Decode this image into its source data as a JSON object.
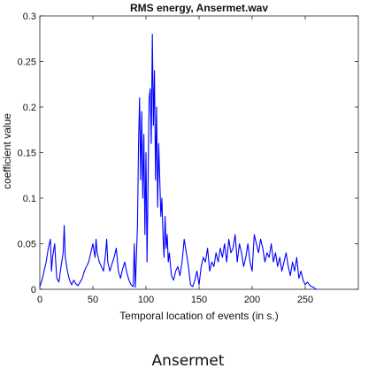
{
  "chart_data": {
    "type": "line",
    "title": "RMS energy, Ansermet.wav",
    "xlabel": "Temporal location of events (in s.)",
    "ylabel": "coefficient value",
    "xlim": [
      0,
      300
    ],
    "ylim": [
      0,
      0.3
    ],
    "xticks": [
      "0",
      "50",
      "100",
      "150",
      "200",
      "250"
    ],
    "yticks": [
      "0",
      "0.05",
      "0.1",
      "0.15",
      "0.2",
      "0.25",
      "0.3"
    ],
    "grid": false,
    "line_color": "#0000ff",
    "series": [
      {
        "x": [
          0,
          2,
          4,
          6,
          8,
          10,
          11,
          12,
          14,
          15,
          16,
          18,
          20,
          22,
          23,
          24,
          26,
          28,
          30,
          32,
          34,
          36,
          38,
          40,
          42,
          44,
          46,
          48,
          50,
          52,
          53,
          54,
          56,
          58,
          60,
          62,
          63,
          64,
          66,
          68,
          70,
          72,
          74,
          76,
          78,
          80,
          82,
          84,
          86,
          88,
          89,
          90,
          92,
          93,
          94,
          95,
          96,
          97,
          98,
          99,
          100,
          101,
          102,
          103,
          104,
          105,
          106,
          107,
          108,
          109,
          110,
          111,
          112,
          113,
          114,
          115,
          116,
          117,
          118,
          119,
          120,
          121,
          122,
          124,
          126,
          128,
          130,
          132,
          134,
          136,
          138,
          140,
          142,
          144,
          146,
          148,
          150,
          152,
          154,
          156,
          158,
          160,
          162,
          164,
          166,
          168,
          170,
          172,
          174,
          176,
          178,
          180,
          182,
          184,
          186,
          188,
          190,
          192,
          194,
          196,
          198,
          200,
          202,
          204,
          206,
          208,
          210,
          212,
          214,
          216,
          218,
          220,
          222,
          224,
          226,
          228,
          230,
          232,
          234,
          236,
          238,
          240,
          242,
          244,
          246,
          248,
          250,
          252,
          254,
          256,
          258,
          260,
          262
        ],
        "y": [
          0.003,
          0.01,
          0.02,
          0.03,
          0.045,
          0.055,
          0.02,
          0.035,
          0.05,
          0.03,
          0.012,
          0.008,
          0.025,
          0.04,
          0.07,
          0.035,
          0.02,
          0.01,
          0.005,
          0.01,
          0.006,
          0.004,
          0.008,
          0.012,
          0.02,
          0.025,
          0.03,
          0.04,
          0.05,
          0.035,
          0.055,
          0.04,
          0.03,
          0.025,
          0.02,
          0.04,
          0.055,
          0.03,
          0.02,
          0.028,
          0.035,
          0.045,
          0.02,
          0.012,
          0.022,
          0.03,
          0.018,
          0.01,
          0.005,
          0.003,
          0.05,
          0.002,
          0.07,
          0.16,
          0.21,
          0.12,
          0.195,
          0.1,
          0.17,
          0.06,
          0.15,
          0.03,
          0.12,
          0.21,
          0.22,
          0.16,
          0.28,
          0.18,
          0.24,
          0.12,
          0.2,
          0.09,
          0.16,
          0.12,
          0.08,
          0.1,
          0.06,
          0.035,
          0.08,
          0.045,
          0.06,
          0.03,
          0.04,
          0.015,
          0.01,
          0.02,
          0.025,
          0.015,
          0.03,
          0.055,
          0.04,
          0.025,
          0.005,
          0.003,
          0.01,
          0.02,
          0.005,
          0.025,
          0.035,
          0.03,
          0.045,
          0.02,
          0.03,
          0.025,
          0.04,
          0.03,
          0.045,
          0.035,
          0.05,
          0.03,
          0.055,
          0.04,
          0.045,
          0.06,
          0.03,
          0.05,
          0.04,
          0.025,
          0.035,
          0.05,
          0.03,
          0.02,
          0.06,
          0.05,
          0.04,
          0.055,
          0.045,
          0.03,
          0.04,
          0.035,
          0.05,
          0.03,
          0.04,
          0.025,
          0.035,
          0.02,
          0.03,
          0.04,
          0.025,
          0.015,
          0.03,
          0.02,
          0.035,
          0.012,
          0.02,
          0.01,
          0.005,
          0.008,
          0.005,
          0.003,
          0.002,
          0.0,
          0.0
        ]
      }
    ]
  },
  "caption": "Ansermet"
}
